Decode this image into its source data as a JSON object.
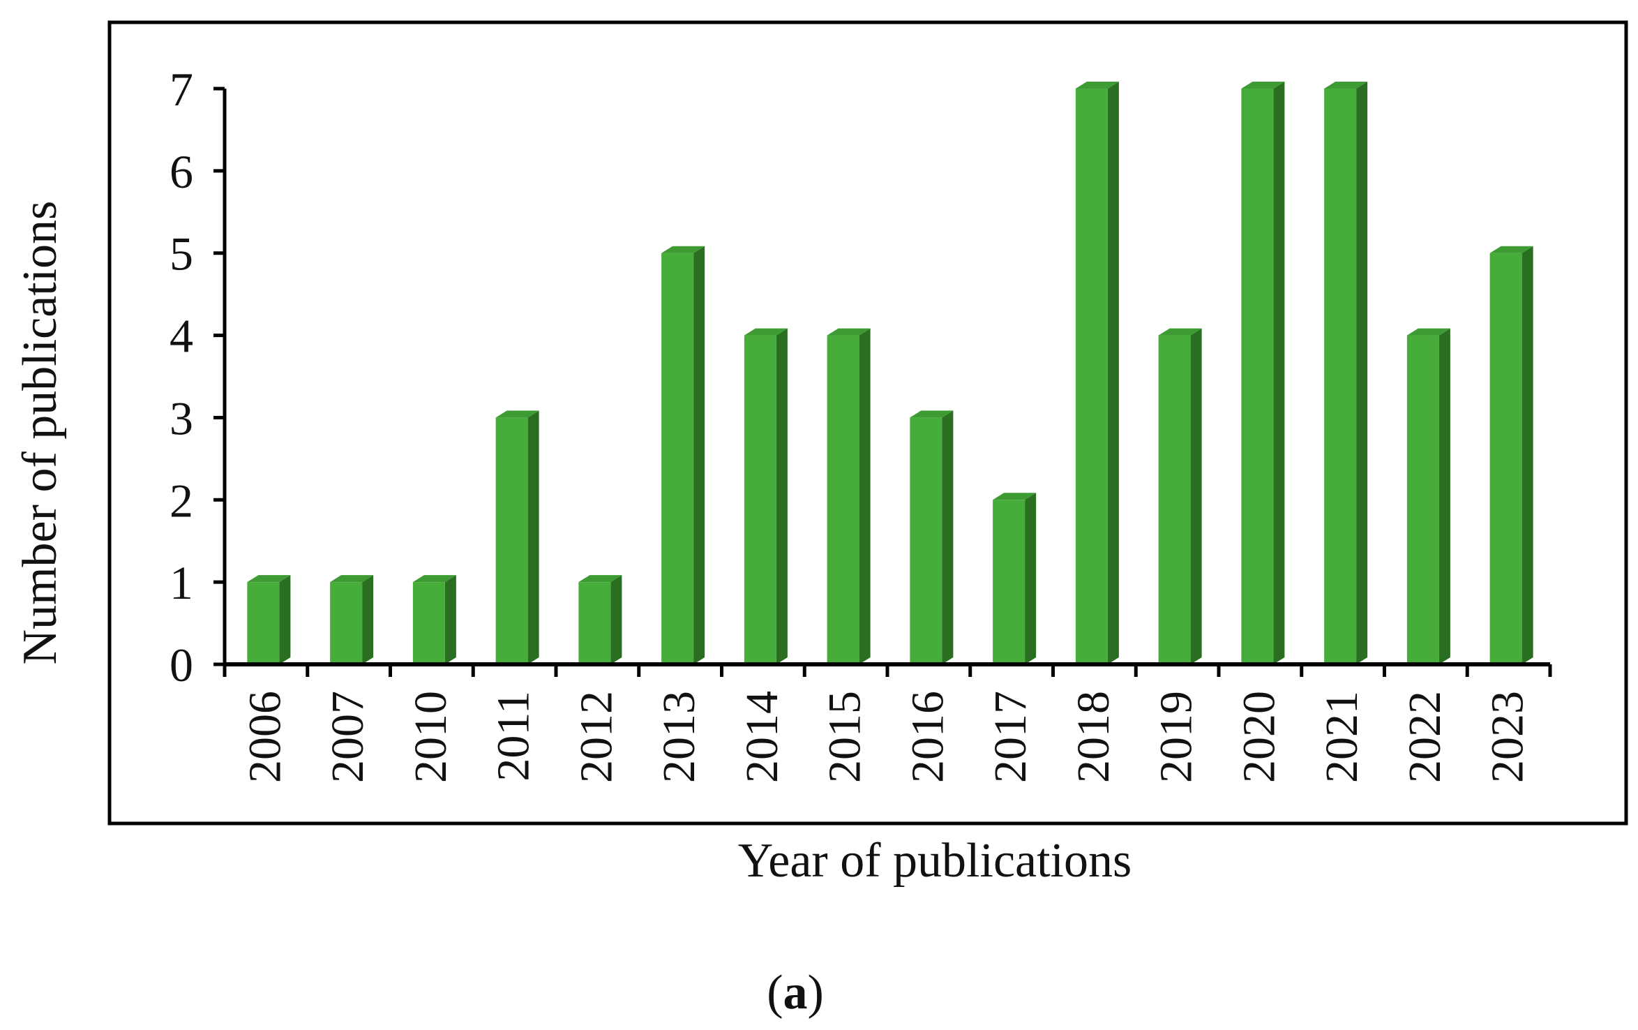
{
  "chart_data": {
    "type": "bar",
    "categories": [
      "2006",
      "2007",
      "2010",
      "2011",
      "2012",
      "2013",
      "2014",
      "2015",
      "2016",
      "2017",
      "2018",
      "2019",
      "2020",
      "2021",
      "2022",
      "2023"
    ],
    "values": [
      1,
      1,
      1,
      3,
      1,
      5,
      4,
      4,
      3,
      2,
      7,
      4,
      7,
      7,
      4,
      5
    ],
    "title": "",
    "xlabel": "Year of publications",
    "ylabel": "Number of publications",
    "ylim": [
      0,
      7
    ],
    "yticks": [
      0,
      1,
      2,
      3,
      4,
      5,
      6,
      7
    ],
    "grid": false,
    "legend": "none",
    "style": "3d-bar",
    "colors": {
      "bar_front": "#46AC3A",
      "bar_side": "#2A6E21",
      "bar_top": "#3E9A33",
      "axis": "#000000"
    }
  },
  "caption": {
    "open": "(",
    "letter": "a",
    "close": ")"
  }
}
